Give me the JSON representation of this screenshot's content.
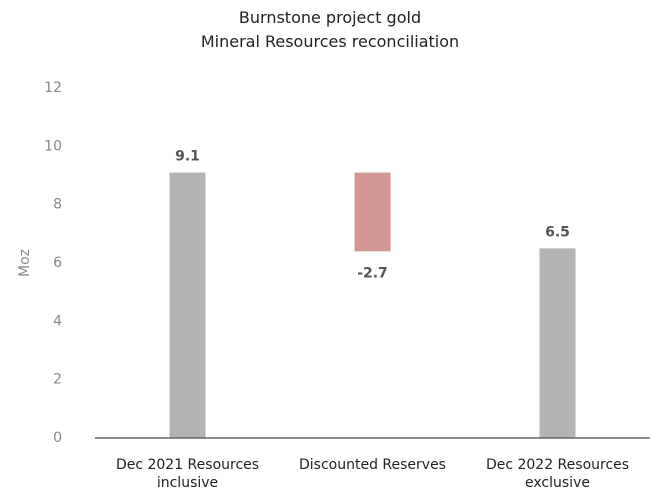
{
  "chart_data": {
    "type": "waterfall",
    "title": "Burnstone project gold\nMineral Resources reconciliation",
    "ylabel": "Moz",
    "categories": [
      "Dec 2021 Resources inclusive",
      "Discounted Reserves",
      "Dec 2022 Resources exclusive"
    ],
    "values": [
      9.1,
      -2.7,
      6.5
    ],
    "measures": [
      "absolute",
      "relative",
      "total"
    ],
    "colors": {
      "absolute": "#b3b3b3",
      "relative": "#d59792",
      "total": "#b3b3b3"
    },
    "ylim": [
      0,
      12
    ],
    "yticks": [
      0,
      2,
      4,
      6,
      8,
      10,
      12
    ],
    "grid": false
  }
}
